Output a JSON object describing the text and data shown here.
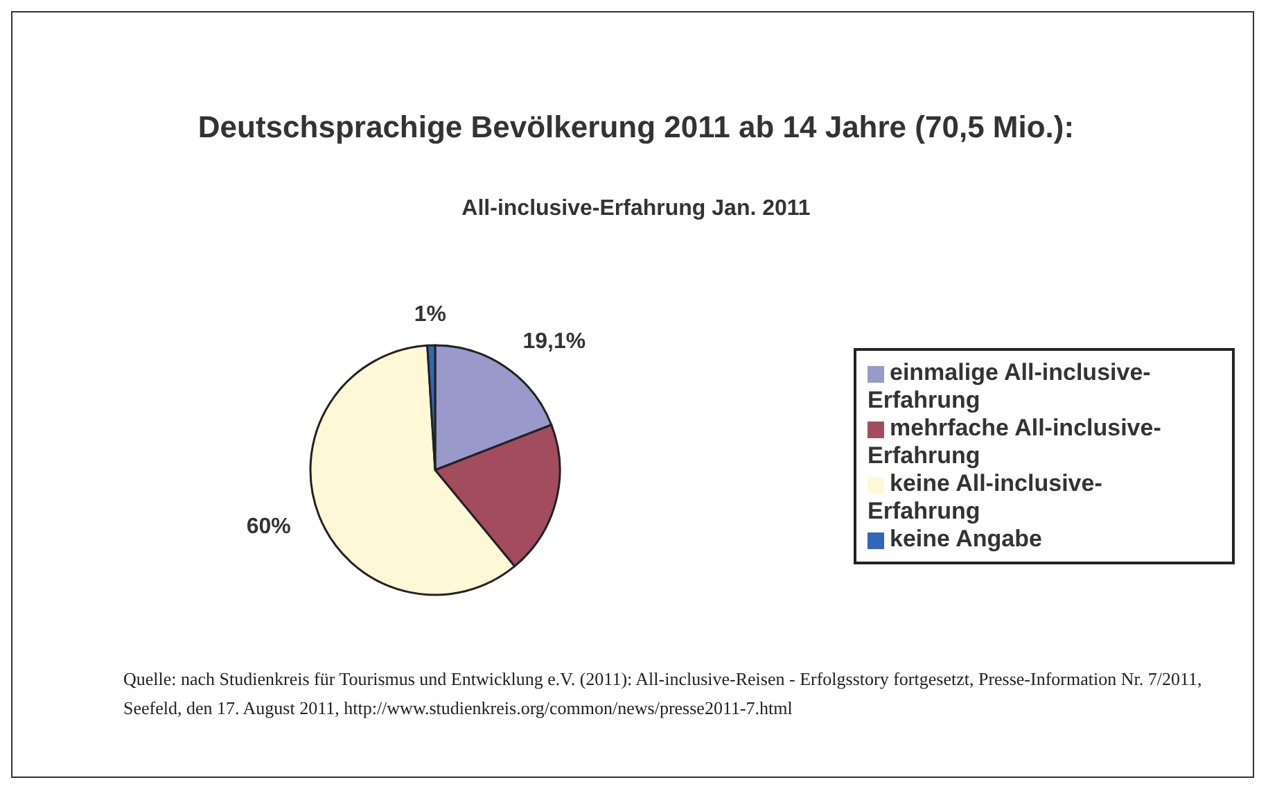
{
  "chart_data": {
    "type": "pie",
    "title": "Deutschsprachige Bevölkerung 2011 ab 14 Jahre (70,5 Mio.):",
    "subtitle": "All-inclusive-Erfahrung Jan. 2011",
    "categories": [
      "einmalige All-inclusive-Erfahrung",
      "mehrfache All-inclusive-Erfahrung",
      "keine All-inclusive-Erfahrung",
      "keine Angabe"
    ],
    "values": [
      19.1,
      19.9,
      60,
      1
    ],
    "value_labels": [
      "19,1%",
      null,
      "60%",
      "1%"
    ],
    "colors": [
      "#9999cc",
      "#a24c5e",
      "#fff8d6",
      "#3366b8"
    ],
    "legend": "right",
    "annotations": [
      "Quelle: nach Studienkreis für Tourismus und Entwicklung e.V. (2011): All-inclusive-Reisen - Erfolgsstory fortgesetzt, Presse-Information Nr. 7/2011, Seefeld, den 17. August 2011, http://www.studienkreis.org/common/news/presse2011-7.html"
    ]
  }
}
